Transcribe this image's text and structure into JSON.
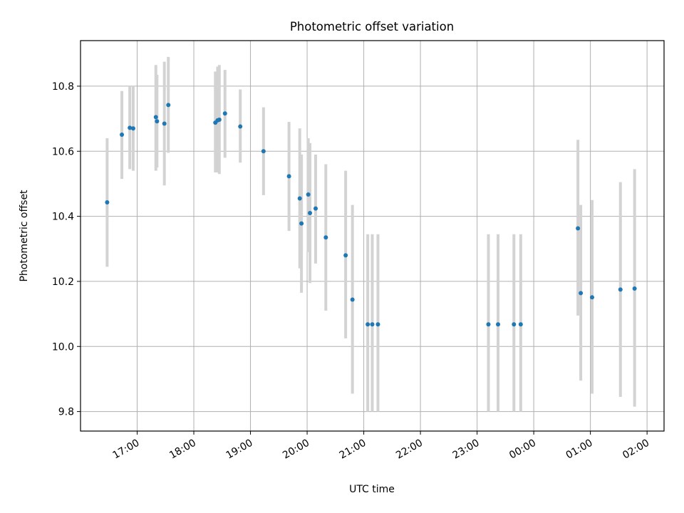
{
  "chart_data": {
    "type": "scatter",
    "title": "Photometric offset variation",
    "xlabel": "UTC time",
    "ylabel": "Photometric offset",
    "x_unit": "hours, UTC (values beyond 24 are after midnight)",
    "xlim": [
      16.0,
      26.3
    ],
    "ylim": [
      9.74,
      10.94
    ],
    "grid": true,
    "legend": "none",
    "x_ticks": [
      {
        "value": 17,
        "label": "17:00"
      },
      {
        "value": 18,
        "label": "18:00"
      },
      {
        "value": 19,
        "label": "19:00"
      },
      {
        "value": 20,
        "label": "20:00"
      },
      {
        "value": 21,
        "label": "21:00"
      },
      {
        "value": 22,
        "label": "22:00"
      },
      {
        "value": 23,
        "label": "23:00"
      },
      {
        "value": 24,
        "label": "00:00"
      },
      {
        "value": 25,
        "label": "01:00"
      },
      {
        "value": 26,
        "label": "02:00"
      }
    ],
    "y_ticks": [
      {
        "value": 9.8,
        "label": "9.8"
      },
      {
        "value": 10.0,
        "label": "10.0"
      },
      {
        "value": 10.2,
        "label": "10.2"
      },
      {
        "value": 10.4,
        "label": "10.4"
      },
      {
        "value": 10.6,
        "label": "10.6"
      },
      {
        "value": 10.8,
        "label": "10.8"
      }
    ],
    "colors": {
      "point": "#1f77b4",
      "errorbar": "#d3d3d3",
      "grid": "#b0b0b0"
    },
    "series": [
      {
        "points": [
          {
            "x": 16.47,
            "y": 10.443,
            "low": 10.245,
            "high": 10.64
          },
          {
            "x": 16.73,
            "y": 10.651,
            "low": 10.515,
            "high": 10.785
          },
          {
            "x": 16.87,
            "y": 10.672,
            "low": 10.545,
            "high": 10.8
          },
          {
            "x": 16.93,
            "y": 10.67,
            "low": 10.54,
            "high": 10.8
          },
          {
            "x": 17.33,
            "y": 10.705,
            "low": 10.54,
            "high": 10.865
          },
          {
            "x": 17.35,
            "y": 10.692,
            "low": 10.55,
            "high": 10.835
          },
          {
            "x": 17.48,
            "y": 10.685,
            "low": 10.495,
            "high": 10.875
          },
          {
            "x": 17.55,
            "y": 10.742,
            "low": 10.595,
            "high": 10.89
          },
          {
            "x": 18.38,
            "y": 10.688,
            "low": 10.535,
            "high": 10.845
          },
          {
            "x": 18.42,
            "y": 10.695,
            "low": 10.535,
            "high": 10.86
          },
          {
            "x": 18.45,
            "y": 10.697,
            "low": 10.53,
            "high": 10.865
          },
          {
            "x": 18.55,
            "y": 10.716,
            "low": 10.58,
            "high": 10.85
          },
          {
            "x": 18.82,
            "y": 10.676,
            "low": 10.565,
            "high": 10.79
          },
          {
            "x": 19.23,
            "y": 10.6,
            "low": 10.465,
            "high": 10.735
          },
          {
            "x": 19.68,
            "y": 10.523,
            "low": 10.355,
            "high": 10.69
          },
          {
            "x": 19.87,
            "y": 10.455,
            "low": 10.24,
            "high": 10.67
          },
          {
            "x": 19.9,
            "y": 10.378,
            "low": 10.165,
            "high": 10.59
          },
          {
            "x": 20.02,
            "y": 10.467,
            "low": 10.29,
            "high": 10.64
          },
          {
            "x": 20.05,
            "y": 10.41,
            "low": 10.195,
            "high": 10.625
          },
          {
            "x": 20.15,
            "y": 10.424,
            "low": 10.255,
            "high": 10.59
          },
          {
            "x": 20.33,
            "y": 10.335,
            "low": 10.11,
            "high": 10.56
          },
          {
            "x": 20.68,
            "y": 10.28,
            "low": 10.025,
            "high": 10.54
          },
          {
            "x": 20.8,
            "y": 10.144,
            "low": 9.855,
            "high": 10.435
          },
          {
            "x": 21.07,
            "y": 10.068,
            "low": 9.8,
            "high": 10.345
          },
          {
            "x": 21.15,
            "y": 10.068,
            "low": 9.8,
            "high": 10.345
          },
          {
            "x": 21.25,
            "y": 10.068,
            "low": 9.8,
            "high": 10.345
          },
          {
            "x": 23.2,
            "y": 10.068,
            "low": 9.8,
            "high": 10.345
          },
          {
            "x": 23.37,
            "y": 10.068,
            "low": 9.8,
            "high": 10.345
          },
          {
            "x": 23.65,
            "y": 10.068,
            "low": 9.8,
            "high": 10.345
          },
          {
            "x": 23.77,
            "y": 10.068,
            "low": 9.8,
            "high": 10.345
          },
          {
            "x": 24.78,
            "y": 10.363,
            "low": 10.095,
            "high": 10.635
          },
          {
            "x": 24.83,
            "y": 10.164,
            "low": 9.895,
            "high": 10.435
          },
          {
            "x": 25.03,
            "y": 10.151,
            "low": 9.855,
            "high": 10.45
          },
          {
            "x": 25.53,
            "y": 10.175,
            "low": 9.845,
            "high": 10.505
          },
          {
            "x": 25.78,
            "y": 10.178,
            "low": 9.815,
            "high": 10.545
          }
        ]
      }
    ]
  }
}
